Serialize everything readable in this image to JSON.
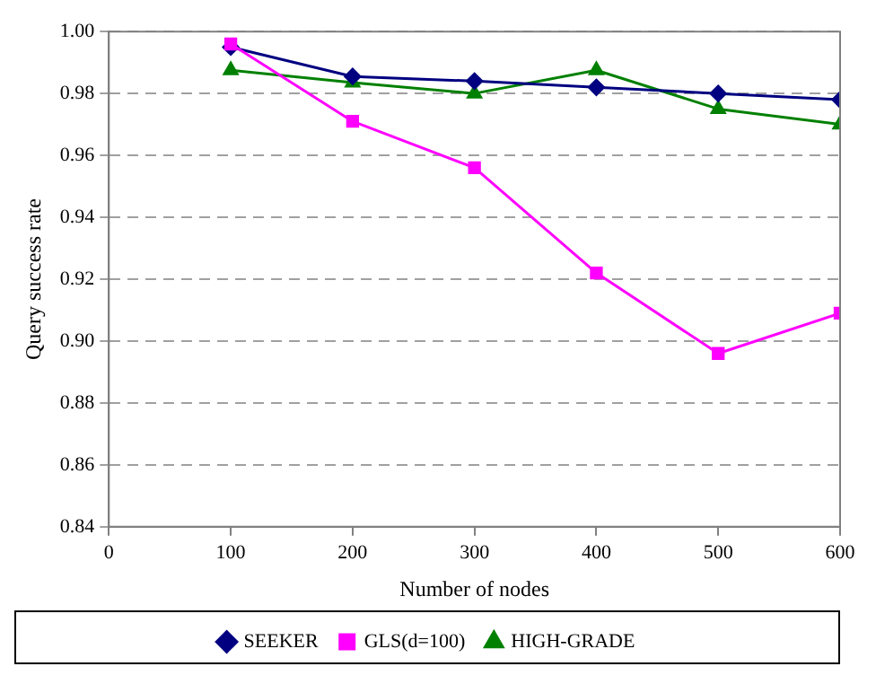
{
  "chart_data": {
    "type": "line",
    "xlabel": "Number of nodes",
    "ylabel": "Query success rate",
    "x": [
      100,
      200,
      300,
      400,
      500,
      600
    ],
    "xlim": [
      0,
      600
    ],
    "xticks": [
      0,
      100,
      200,
      300,
      400,
      500,
      600
    ],
    "ylim": [
      0.84,
      1.0
    ],
    "yticks": [
      {
        "value": 0.84,
        "label": "0.84"
      },
      {
        "value": 0.86,
        "label": "0.86"
      },
      {
        "value": 0.88,
        "label": "0.88"
      },
      {
        "value": 0.9,
        "label": "0.90"
      },
      {
        "value": 0.92,
        "label": "0.92"
      },
      {
        "value": 0.94,
        "label": "0.94"
      },
      {
        "value": 0.96,
        "label": "0.96"
      },
      {
        "value": 0.98,
        "label": "0.98"
      },
      {
        "value": 1.0,
        "label": "1.00"
      }
    ],
    "grid": "y",
    "legend": "bottom",
    "series": [
      {
        "name": "SEEKER",
        "color": "#000080",
        "marker": "diamond",
        "values": [
          0.995,
          0.9855,
          0.984,
          0.982,
          0.98,
          0.978
        ]
      },
      {
        "name": "GLS(d=100)",
        "color": "#ff00ff",
        "marker": "square",
        "values": [
          0.996,
          0.971,
          0.956,
          0.922,
          0.896,
          0.909
        ]
      },
      {
        "name": "HIGH-GRADE",
        "color": "#008000",
        "marker": "triangle",
        "values": [
          0.9875,
          0.9835,
          0.98,
          0.9875,
          0.975,
          0.97
        ]
      }
    ]
  }
}
